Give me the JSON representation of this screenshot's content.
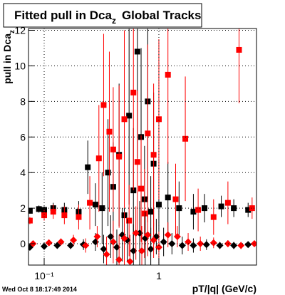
{
  "chart_data": {
    "type": "scatter",
    "title": "Fitted pull in Dca",
    "title_subscript": "z",
    "title_suffix": "Global Tracks",
    "x_label": "pT/|q| (GeV/c)",
    "y_label": "pull in Dca",
    "y_label_subscript": "z",
    "footer": "Wed Oct  8 18:17:49 2014",
    "log_x": true,
    "grid": true,
    "xlim": [
      0.073,
      7.1
    ],
    "ylim": [
      -1.2,
      12.1
    ],
    "xticks": [
      {
        "value": 0.1,
        "label": "10⁻¹"
      },
      1
    ],
    "yticks": [
      0,
      2,
      4,
      6,
      8,
      10,
      12
    ],
    "series": [
      {
        "name": "black-squares",
        "color": "#000000",
        "marker": "square",
        "x": [
          0.075,
          0.09,
          0.1,
          0.12,
          0.15,
          0.2,
          0.24,
          0.28,
          0.32,
          0.36,
          0.4,
          0.45,
          0.5,
          0.55,
          0.6,
          0.65,
          0.7,
          0.75,
          0.8,
          0.85,
          0.9,
          1.0,
          1.2,
          1.5,
          2.0,
          2.5,
          3.5,
          4.5,
          6.0
        ],
        "values": [
          1.85,
          1.95,
          1.9,
          2.0,
          1.9,
          1.8,
          4.3,
          2.2,
          2.0,
          4.0,
          3.2,
          5.0,
          1.6,
          7.2,
          3.0,
          10.8,
          6.0,
          2.5,
          8.0,
          1.8,
          4.5,
          2.2,
          2.6,
          2.0,
          1.8,
          2.0,
          2.1,
          2.0,
          1.9
        ],
        "errors": [
          0.15,
          0.2,
          0.2,
          0.3,
          0.4,
          0.6,
          1.5,
          1.2,
          2.0,
          3.0,
          2.5,
          4.0,
          2.0,
          5.0,
          3.5,
          6.0,
          5.0,
          3.0,
          5.5,
          2.0,
          4.0,
          2.5,
          2.0,
          1.5,
          1.0,
          0.8,
          0.6,
          0.5,
          0.4
        ]
      },
      {
        "name": "red-squares",
        "color": "#ff0000",
        "marker": "square",
        "x": [
          0.075,
          0.1,
          0.12,
          0.15,
          0.2,
          0.25,
          0.3,
          0.33,
          0.37,
          0.4,
          0.45,
          0.5,
          0.55,
          0.6,
          0.65,
          0.7,
          0.75,
          0.8,
          0.9,
          1.0,
          1.2,
          1.4,
          1.7,
          2.2,
          3.0,
          4.0,
          5.0,
          6.5
        ],
        "values": [
          1.3,
          1.6,
          1.8,
          1.6,
          1.5,
          2.3,
          4.8,
          7.8,
          6.3,
          5.3,
          4.9,
          7.0,
          1.3,
          8.5,
          4.6,
          3.1,
          1.7,
          6.2,
          5.0,
          7.0,
          9.5,
          2.5,
          5.9,
          1.9,
          1.5,
          2.3,
          10.9,
          2.0
        ],
        "errors": [
          0.2,
          0.3,
          0.4,
          0.5,
          0.7,
          1.5,
          3.0,
          4.0,
          4.5,
          3.5,
          4.0,
          5.0,
          2.0,
          5.5,
          4.0,
          3.0,
          2.5,
          5.0,
          4.0,
          4.5,
          5.0,
          2.0,
          3.5,
          1.2,
          1.0,
          1.2,
          3.0,
          0.6
        ]
      },
      {
        "name": "black-diamonds",
        "color": "#000000",
        "marker": "diamond",
        "x": [
          0.075,
          0.1,
          0.13,
          0.17,
          0.22,
          0.28,
          0.33,
          0.38,
          0.43,
          0.48,
          0.53,
          0.6,
          0.68,
          0.76,
          0.85,
          0.95,
          1.1,
          1.3,
          1.6,
          2.0,
          2.6,
          3.4,
          4.5,
          6.0
        ],
        "values": [
          -0.2,
          -0.15,
          -0.1,
          -0.1,
          -0.05,
          0.1,
          -0.3,
          0.4,
          -0.2,
          0.5,
          0.2,
          -0.4,
          0.6,
          0.3,
          -0.3,
          0.4,
          0.1,
          0.0,
          -0.1,
          -0.1,
          -0.05,
          -0.1,
          -0.1,
          -0.05
        ],
        "errors": [
          0.1,
          0.1,
          0.15,
          0.2,
          0.3,
          0.5,
          0.8,
          1.2,
          1.0,
          1.5,
          1.2,
          1.5,
          1.8,
          1.5,
          1.2,
          1.0,
          0.8,
          0.6,
          0.5,
          0.4,
          0.3,
          0.2,
          0.2,
          0.15
        ]
      },
      {
        "name": "red-diamonds",
        "color": "#ff0000",
        "marker": "diamond",
        "x": [
          0.08,
          0.11,
          0.14,
          0.18,
          0.23,
          0.29,
          0.35,
          0.4,
          0.45,
          0.5,
          0.56,
          0.63,
          0.71,
          0.8,
          0.9,
          1.0,
          1.2,
          1.45,
          1.8,
          2.3,
          3.0,
          4.0,
          5.2,
          6.8
        ],
        "values": [
          0.0,
          0.05,
          0.1,
          0.2,
          -0.1,
          0.4,
          -0.6,
          0.1,
          -0.9,
          0.3,
          -1.0,
          0.6,
          -0.4,
          0.5,
          0.2,
          -0.2,
          0.5,
          0.4,
          0.1,
          0.0,
          0.05,
          0.0,
          -0.1,
          0.0
        ],
        "errors": [
          0.1,
          0.15,
          0.2,
          0.3,
          0.4,
          0.6,
          1.0,
          1.2,
          1.4,
          1.5,
          1.5,
          1.5,
          1.4,
          1.2,
          1.0,
          0.9,
          0.7,
          0.6,
          0.5,
          0.4,
          0.3,
          0.2,
          0.2,
          0.15
        ]
      }
    ]
  }
}
